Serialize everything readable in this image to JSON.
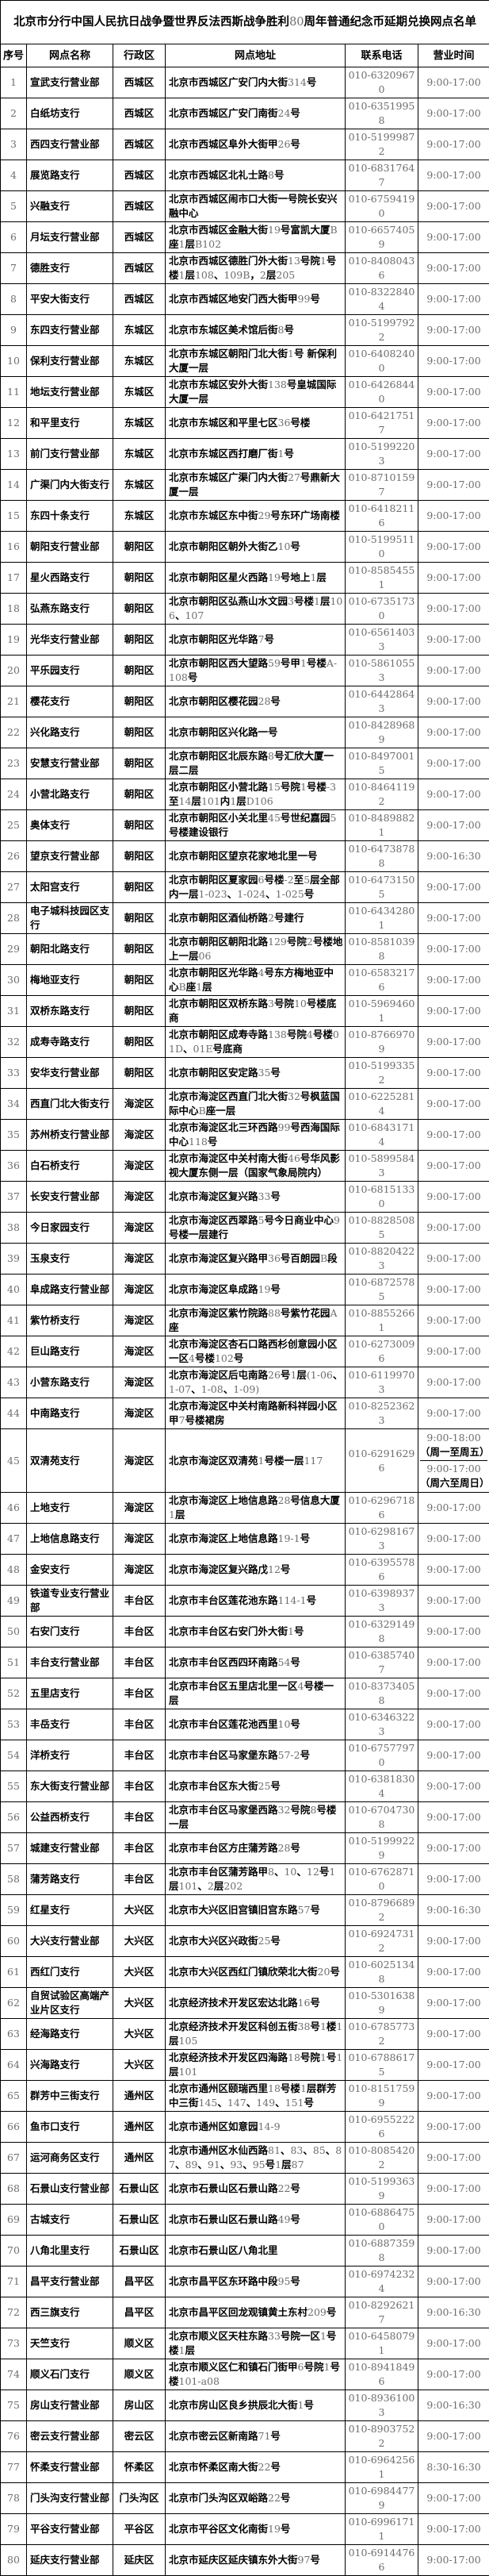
{
  "title": "北京市分行中国人民抗日战争暨世界反法西斯战争胜利80周年普通纪念币延期兑换网点名单",
  "columns": [
    "序号",
    "网点名称",
    "行政区",
    "网点地址",
    "联系电话",
    "营业时间"
  ],
  "rows": [
    {
      "no": "1",
      "name": "宣武支行营业部",
      "district": "西城区",
      "address": "北京市西城区广安门内大街314号",
      "phone": "010-63209670",
      "hours": "9:00-17:00"
    },
    {
      "no": "2",
      "name": "白纸坊支行",
      "district": "西城区",
      "address": "北京市西城区广安门南街24号",
      "phone": "010-63519958",
      "hours": "9:00-17:00"
    },
    {
      "no": "3",
      "name": "西四支行营业部",
      "district": "西城区",
      "address": "北京市西城区阜外大街甲26号",
      "phone": "010-51999872",
      "hours": "9:00-17:00"
    },
    {
      "no": "4",
      "name": "展览路支行",
      "district": "西城区",
      "address": "北京市西城区北礼士路8号",
      "phone": "010-68317647",
      "hours": "9:00-17:00"
    },
    {
      "no": "5",
      "name": "兴融支行",
      "district": "西城区",
      "address": "北京市西城区闹市口大街一号院长安兴融中心",
      "phone": "010-67594190",
      "hours": "9:00-17:00"
    },
    {
      "no": "6",
      "name": "月坛支行营业部",
      "district": "西城区",
      "address": "北京市西城区金融大街19号富凯大厦B座1层B102",
      "phone": "010-66574059",
      "hours": "9:00-17:00"
    },
    {
      "no": "7",
      "name": "德胜支行",
      "district": "西城区",
      "address": "北京市西城区德胜门外大街13号院1号楼1层108、109B，2层205",
      "phone": "010-84080436",
      "hours": "9:00-17:00"
    },
    {
      "no": "8",
      "name": "平安大街支行",
      "district": "西城区",
      "address": "北京市西城区地安门西大街甲99号",
      "phone": "010-83228404",
      "hours": "9:00-17:00"
    },
    {
      "no": "9",
      "name": "东四支行营业部",
      "district": "东城区",
      "address": "北京市东城区美术馆后街8号",
      "phone": "010-51997922",
      "hours": "9:00-17:00"
    },
    {
      "no": "10",
      "name": "保利支行营业部",
      "district": "东城区",
      "address": "北京市东城区朝阳门北大街1号 新保利大厦一层",
      "phone": "010-64082400",
      "hours": "9:00-17:00"
    },
    {
      "no": "11",
      "name": "地坛支行营业部",
      "district": "东城区",
      "address": "北京市东城区安外大街138号皇城国际大厦一层",
      "phone": "010-64268440",
      "hours": "9:00-17:00"
    },
    {
      "no": "12",
      "name": "和平里支行",
      "district": "东城区",
      "address": "北京市东城区和平里七区36号楼",
      "phone": "010-64217517",
      "hours": "9:00-17:00"
    },
    {
      "no": "13",
      "name": "前门支行营业部",
      "district": "东城区",
      "address": "北京市东城区西打磨厂街1号",
      "phone": "010-51992203",
      "hours": "9:00-17:00"
    },
    {
      "no": "14",
      "name": "广渠门内大街支行",
      "district": "东城区",
      "address": "北京市东城区广渠门内大街27号鼎新大厦一层",
      "phone": "010-87101597",
      "hours": "9:00-17:00"
    },
    {
      "no": "15",
      "name": "东四十条支行",
      "district": "东城区",
      "address": "北京市东城区东中街29号东环广场南楼",
      "phone": "010-64182116",
      "hours": "9:00-17:00"
    },
    {
      "no": "16",
      "name": "朝阳支行营业部",
      "district": "朝阳区",
      "address": "北京市朝阳区朝外大街乙10号",
      "phone": "010-51995110",
      "hours": "9:00-17:00"
    },
    {
      "no": "17",
      "name": "星火西路支行",
      "district": "朝阳区",
      "address": "北京市朝阳区星火西路19号地上1层",
      "phone": "010-85854551",
      "hours": "9:00-17:00"
    },
    {
      "no": "18",
      "name": "弘燕东路支行",
      "district": "朝阳区",
      "address": "北京市朝阳区弘燕山水文园3号楼1层106、107",
      "phone": "010-67351730",
      "hours": "9:00-17:00"
    },
    {
      "no": "19",
      "name": "光华支行营业部",
      "district": "朝阳区",
      "address": "北京市朝阳区光华路7号",
      "phone": "010-65614033",
      "hours": "9:00-17:00"
    },
    {
      "no": "20",
      "name": "平乐园支行",
      "district": "朝阳区",
      "address": "北京市朝阳区西大望路59号甲1号楼A-108号",
      "phone": "010-58610553",
      "hours": "9:00-17:00"
    },
    {
      "no": "21",
      "name": "樱花支行",
      "district": "朝阳区",
      "address": "北京市朝阳区樱花园28号",
      "phone": "010-64428643",
      "hours": "9:00-17:00"
    },
    {
      "no": "22",
      "name": "兴化路支行",
      "district": "朝阳区",
      "address": "北京市朝阳区兴化路一号",
      "phone": "010-84289689",
      "hours": "9:00-17:00"
    },
    {
      "no": "23",
      "name": "安慧支行营业部",
      "district": "朝阳区",
      "address": "北京市朝阳区北辰东路8号汇欣大厦一层二层",
      "phone": "010-84970015",
      "hours": "9:00-17:00"
    },
    {
      "no": "24",
      "name": "小营北路支行",
      "district": "朝阳区",
      "address": "北京市朝阳区小营北路15号院1号楼-3至14层101内1层D106",
      "phone": "010-84641192",
      "hours": "9:00-17:00"
    },
    {
      "no": "25",
      "name": "奥体支行",
      "district": "朝阳区",
      "address": "北京市朝阳区小关北里45号世纪嘉园5号楼建设银行",
      "phone": "010-84898821",
      "hours": "9:00-17:00"
    },
    {
      "no": "26",
      "name": "望京支行营业部",
      "district": "朝阳区",
      "address": "北京市朝阳区望京花家地北里一号",
      "phone": "010-64738788",
      "hours": "9:00-16:30"
    },
    {
      "no": "27",
      "name": "太阳宫支行",
      "district": "朝阳区",
      "address": "北京市朝阳区夏家园6号楼-2至5层全部内一层1-023、1-024、1-025号",
      "phone": "010-64731505",
      "hours": "9:00-17:00"
    },
    {
      "no": "28",
      "name": "电子城科技园区支行",
      "district": "朝阳区",
      "address": "北京市朝阳区酒仙桥路2号建行",
      "phone": "010-64342801",
      "hours": "9:00-17:00"
    },
    {
      "no": "29",
      "name": "朝阳北路支行",
      "district": "朝阳区",
      "address": "北京市朝阳区朝阳北路129号院2号楼地上一层06",
      "phone": "010-85810398",
      "hours": "9:00-17:00"
    },
    {
      "no": "30",
      "name": "梅地亚支行",
      "district": "朝阳区",
      "address": "北京市朝阳区光华路4号东方梅地亚中心B座1层",
      "phone": "010-65832176",
      "hours": "9:00-17:00"
    },
    {
      "no": "31",
      "name": "双桥东路支行",
      "district": "朝阳区",
      "address": "北京市朝阳区双桥东路3号院10号楼底商",
      "phone": "010-59694601",
      "hours": "9:00-17:00"
    },
    {
      "no": "32",
      "name": "成寿寺路支行",
      "district": "朝阳区",
      "address": "北京市朝阳区成寿寺路138号院4号楼01D、01E号底商",
      "phone": "010-87669709",
      "hours": "9:00-17:00"
    },
    {
      "no": "33",
      "name": "安华支行营业部",
      "district": "朝阳区",
      "address": "北京市朝阳区安定路35号",
      "phone": "010-51993352",
      "hours": "9:00-17:00"
    },
    {
      "no": "34",
      "name": "西直门北大街支行",
      "district": "海淀区",
      "address": "北京市海淀区西直门北大街32号枫蓝国际中心B座一层",
      "phone": "010-62252814",
      "hours": "9:00-17:00"
    },
    {
      "no": "35",
      "name": "苏州桥支行营业部",
      "district": "海淀区",
      "address": "北京市海淀区北三环西路99号西海国际中心118号",
      "phone": "010-68431714",
      "hours": "9:00-17:00"
    },
    {
      "no": "36",
      "name": "白石桥支行",
      "district": "海淀区",
      "address": "北京市海淀区中关村南大街46号华风影视大厦东侧一层（国家气象局院内）",
      "phone": "010-58995843",
      "hours": "9:00-17:00"
    },
    {
      "no": "37",
      "name": "长安支行营业部",
      "district": "海淀区",
      "address": "北京市海淀区复兴路33号",
      "phone": "010-68151330",
      "hours": "9:00-17:00"
    },
    {
      "no": "38",
      "name": "今日家园支行",
      "district": "海淀区",
      "address": "北京市海淀区西翠路5号今日商业中心9号楼一层建行",
      "phone": "010-88285085",
      "hours": "9:00-17:00"
    },
    {
      "no": "39",
      "name": "玉泉支行",
      "district": "海淀区",
      "address": "北京市海淀区复兴路甲36号百朗园B段",
      "phone": "010-88204223",
      "hours": "9:00-17:00"
    },
    {
      "no": "40",
      "name": "阜成路支行营业部",
      "district": "海淀区",
      "address": "北京市海淀区阜成路19号",
      "phone": "010-68725785",
      "hours": "9:00-17:00"
    },
    {
      "no": "41",
      "name": "紫竹桥支行",
      "district": "海淀区",
      "address": "北京市海淀区紫竹院路88号紫竹花园A座",
      "phone": "010-88552661",
      "hours": "9:00-17:00"
    },
    {
      "no": "42",
      "name": "巨山路支行",
      "district": "海淀区",
      "address": "北京市海淀区杏石口路西杉创意园小区一区4号楼102号",
      "phone": "010-62730096",
      "hours": "9:00-17:00"
    },
    {
      "no": "43",
      "name": "小营东路支行",
      "district": "海淀区",
      "address": "北京市海淀区后屯南路26号1层(1-06、1-07、1-08、1-09)",
      "phone": "010-61199703",
      "hours": "9:00-17:00"
    },
    {
      "no": "44",
      "name": "中南路支行",
      "district": "海淀区",
      "address": "北京市海淀区中关村南路新科祥园小区甲7号楼裙房",
      "phone": "010-82523623",
      "hours": "9:00-17:00"
    },
    {
      "no": "45",
      "name": "双清苑支行",
      "district": "海淀区",
      "address": "北京市海淀区双清苑1号楼一层117",
      "phone": "010-62916296",
      "hours": [
        "9:00-18:00（周一至周五）",
        "9:00-17:00（周六至周日）"
      ]
    },
    {
      "no": "46",
      "name": "上地支行",
      "district": "海淀区",
      "address": "北京市海淀区上地信息路28号信息大厦1层",
      "phone": "010-62967186",
      "hours": "9:00-17:00"
    },
    {
      "no": "47",
      "name": "上地信息路支行",
      "district": "海淀区",
      "address": "北京市海淀区上地信息路19-1号",
      "phone": "010-62981673",
      "hours": "9:00-17:00"
    },
    {
      "no": "48",
      "name": "金安支行",
      "district": "海淀区",
      "address": "北京市海淀区复兴路戊12号",
      "phone": "010-63955786",
      "hours": "9:00-17:00"
    },
    {
      "no": "49",
      "name": "铁道专业支行营业部",
      "district": "丰台区",
      "address": "北京市丰台区莲花池东路114-1号",
      "phone": "010-63989373",
      "hours": "9:00-17:00"
    },
    {
      "no": "50",
      "name": "右安门支行",
      "district": "丰台区",
      "address": "北京市丰台区右安门外大街1号",
      "phone": "010-63291498",
      "hours": "9:00-17:00"
    },
    {
      "no": "51",
      "name": "丰台支行营业部",
      "district": "丰台区",
      "address": "北京市丰台区西四环南路54号",
      "phone": "010-63857407",
      "hours": "9:00-17:00"
    },
    {
      "no": "52",
      "name": "五里店支行",
      "district": "丰台区",
      "address": "北京市丰台区五里店北里一区4号楼一层",
      "phone": "010-83734058",
      "hours": "9:00-17:00"
    },
    {
      "no": "53",
      "name": "丰岳支行",
      "district": "丰台区",
      "address": "北京市丰台区莲花池西里10号",
      "phone": "010-63463223",
      "hours": "9:00-17:00"
    },
    {
      "no": "54",
      "name": "洋桥支行",
      "district": "丰台区",
      "address": "北京市丰台区马家堡东路57-2号",
      "phone": "010-67577970",
      "hours": "9:00-17:00"
    },
    {
      "no": "55",
      "name": "东大街支行营业部",
      "district": "丰台区",
      "address": "北京市丰台区东大街25号",
      "phone": "010-63818304",
      "hours": "9:00-17:00"
    },
    {
      "no": "56",
      "name": "公益西桥支行",
      "district": "丰台区",
      "address": "北京市丰台区马家堡西路32号院8号楼一层",
      "phone": "010-67047308",
      "hours": "9:00-17:00"
    },
    {
      "no": "57",
      "name": "城建支行营业部",
      "district": "丰台区",
      "address": "北京市丰台区方庄蒲芳路28号",
      "phone": "010-51999229",
      "hours": "9:00-17:00"
    },
    {
      "no": "58",
      "name": "蒲芳路支行",
      "district": "丰台区",
      "address": "北京市丰台区蒲芳路甲8、10、12号1层101、2层202",
      "phone": "010-67628710",
      "hours": "9:00-17:00"
    },
    {
      "no": "59",
      "name": "红星支行",
      "district": "大兴区",
      "address": "北京市大兴区旧宫镇旧宫东路57号",
      "phone": "010-87966892",
      "hours": "9:00-16:30"
    },
    {
      "no": "60",
      "name": "大兴支行营业部",
      "district": "大兴区",
      "address": "北京市大兴区兴政街25号",
      "phone": "010-69247312",
      "hours": "9:00-17:00"
    },
    {
      "no": "61",
      "name": "西红门支行",
      "district": "大兴区",
      "address": "北京市大兴区西红门镇欣荣北大街20号",
      "phone": "010-60251348",
      "hours": "9:00-17:00"
    },
    {
      "no": "62",
      "name": "自贸试验区高端产业片区支行",
      "district": "大兴区",
      "address": "北京经济技术开发区宏达北路16号",
      "phone": "010-53016389",
      "hours": "9:00-17:00"
    },
    {
      "no": "63",
      "name": "经海路支行",
      "district": "大兴区",
      "address": "北京经济技术开发区科创五街38号1楼1层105",
      "phone": "010-67857732",
      "hours": "9:00-17:00"
    },
    {
      "no": "64",
      "name": "兴海路支行",
      "district": "大兴区",
      "address": "北京经济技术开发区四海路18号院1号1层101",
      "phone": "010-67886175",
      "hours": "9:00-17:00"
    },
    {
      "no": "65",
      "name": "群芳中三街支行",
      "district": "通州区",
      "address": "北京市通州区颐瑞西里18号楼1层群芳中三街145、147、149、151号",
      "phone": "010-81517599",
      "hours": "9:00-17:00"
    },
    {
      "no": "66",
      "name": "鱼市口支行",
      "district": "通州区",
      "address": "北京市通州区如意园14-9",
      "phone": "010-69552226",
      "hours": "9:00-17:00"
    },
    {
      "no": "67",
      "name": "运河商务区支行",
      "district": "通州区",
      "address": "北京市通州区水仙西路81、83、85、87、89、91、93、95号1层87",
      "phone": "010-80854202",
      "hours": "9:00-17:00"
    },
    {
      "no": "68",
      "name": "石景山支行营业部",
      "district": "石景山区",
      "address": "北京市石景山区石景山路22号",
      "phone": "010-51993639",
      "hours": "9:00-17:00"
    },
    {
      "no": "69",
      "name": "古城支行",
      "district": "石景山区",
      "address": "北京市石景山区石景山路49号",
      "phone": "010-68864750",
      "hours": "9:00-17:00"
    },
    {
      "no": "70",
      "name": "八角北里支行",
      "district": "石景山区",
      "address": "北京市石景山区八角北里",
      "phone": "010-68873598",
      "hours": "9:00-17:00"
    },
    {
      "no": "71",
      "name": "昌平支行营业部",
      "district": "昌平区",
      "address": "北京市昌平区东环路中段95号",
      "phone": "010-69742324",
      "hours": "9:00-17:00"
    },
    {
      "no": "72",
      "name": "西三旗支行",
      "district": "昌平区",
      "address": "北京市昌平区回龙观镇黄土东村209号",
      "phone": "010-82926217",
      "hours": "9:00-16:30"
    },
    {
      "no": "73",
      "name": "天竺支行",
      "district": "顺义区",
      "address": "北京市顺义区天柱东路33号院一区1号楼1层",
      "phone": "010-64580791",
      "hours": "9:00-17:00"
    },
    {
      "no": "74",
      "name": "顺义石门支行",
      "district": "顺义区",
      "address": "北京市顺义区仁和镇石门街甲6号院1号楼101-a08",
      "phone": "010-89418496",
      "hours": "9:00-17:00"
    },
    {
      "no": "75",
      "name": "房山支行营业部",
      "district": "房山区",
      "address": "北京市房山区良乡拱辰北大街1号",
      "phone": "010-89361003",
      "hours": "9:00-16:30"
    },
    {
      "no": "76",
      "name": "密云支行营业部",
      "district": "密云区",
      "address": "北京市密云区新南路71号",
      "phone": "010-89037522",
      "hours": "9:00-17:00"
    },
    {
      "no": "77",
      "name": "怀柔支行营业部",
      "district": "怀柔区",
      "address": "北京市怀柔区南大街22号",
      "phone": "010-69642561",
      "hours": "8:30-16:30"
    },
    {
      "no": "78",
      "name": "门头沟支行营业部",
      "district": "门头沟区",
      "address": "北京市门头沟区双峪路22号",
      "phone": "010-69844779",
      "hours": "9:00-17:00"
    },
    {
      "no": "79",
      "name": "平谷支行营业部",
      "district": "平谷区",
      "address": "北京市平谷区文化南街19号",
      "phone": "010-69961711",
      "hours": "9:00-17:00"
    },
    {
      "no": "80",
      "name": "延庆支行营业部",
      "district": "延庆区",
      "address": "北京市延庆区延庆镇东外大街97号",
      "phone": "010-69144766",
      "hours": "9:00-17:00"
    }
  ]
}
